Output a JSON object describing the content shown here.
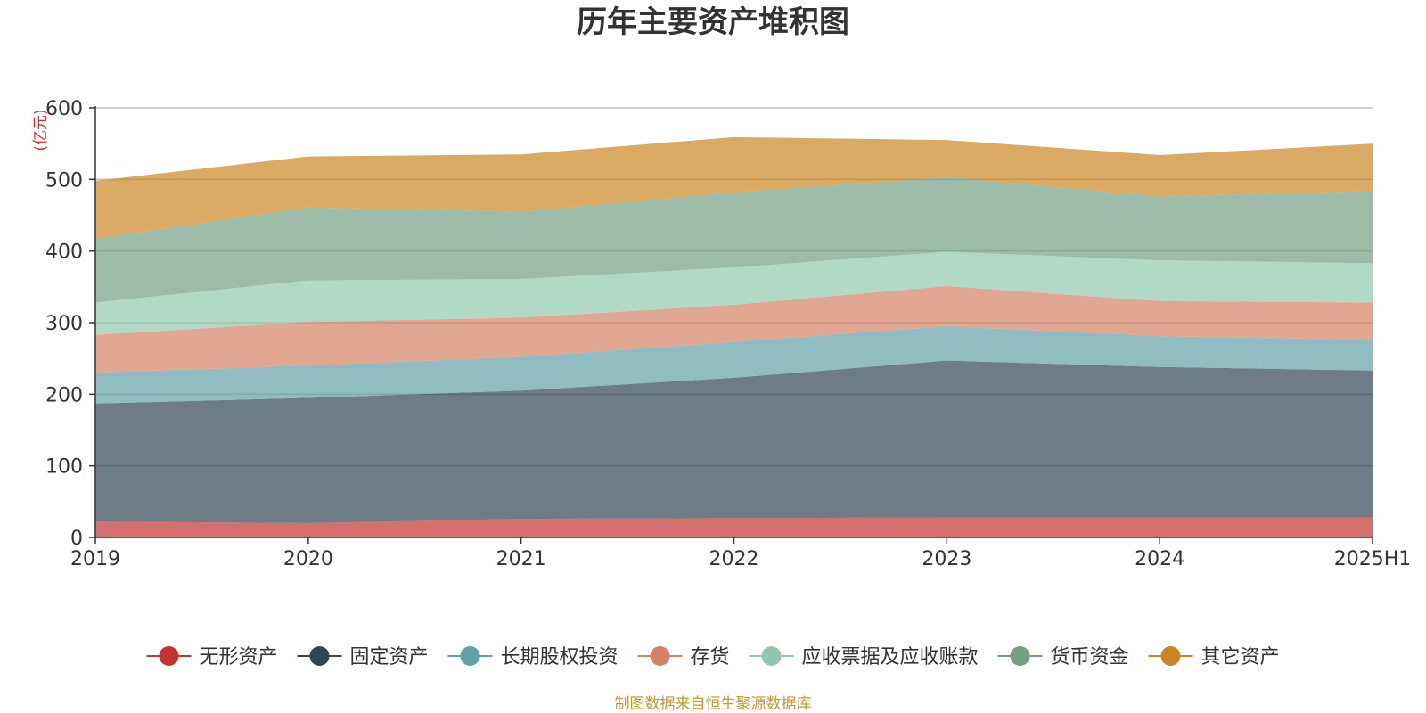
{
  "chart_data": {
    "type": "area",
    "stacked": true,
    "title": "历年主要资产堆积图",
    "y_unit": "(亿元)",
    "categories": [
      "2019",
      "2020",
      "2021",
      "2022",
      "2023",
      "2024",
      "2025H1"
    ],
    "ylim": [
      0,
      600
    ],
    "yticks": [
      "0",
      "100",
      "200",
      "300",
      "400",
      "500",
      "600"
    ],
    "grid": true,
    "legend_position": "bottom",
    "series": [
      {
        "name": "无形资产",
        "color": "#c23531",
        "values": [
          22,
          20,
          26,
          27,
          28,
          28,
          28
        ]
      },
      {
        "name": "固定资产",
        "color": "#2f4554",
        "values": [
          165,
          175,
          179,
          196,
          219,
          210,
          205
        ]
      },
      {
        "name": "长期股权投资",
        "color": "#61a0a8",
        "values": [
          43,
          45,
          47,
          50,
          48,
          43,
          43
        ]
      },
      {
        "name": "存货",
        "color": "#d48265",
        "values": [
          53,
          61,
          55,
          52,
          56,
          49,
          52
        ]
      },
      {
        "name": "应收票据及应收账款",
        "color": "#91c7ae",
        "values": [
          45,
          58,
          54,
          52,
          48,
          57,
          55
        ]
      },
      {
        "name": "货币资金",
        "color": "#749f83",
        "values": [
          89,
          102,
          94,
          105,
          104,
          89,
          101
        ]
      },
      {
        "name": "其它资产",
        "color": "#ca8622",
        "values": [
          81,
          71,
          80,
          77,
          52,
          58,
          66
        ]
      }
    ],
    "source": "制图数据来自恒生聚源数据库"
  }
}
